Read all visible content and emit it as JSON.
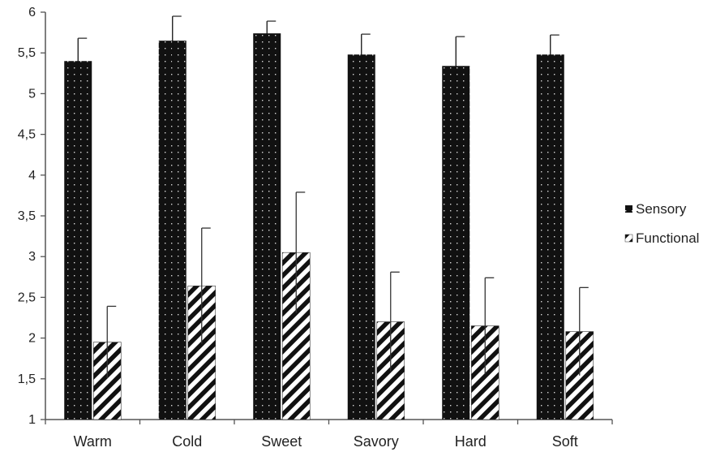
{
  "chart_data": {
    "type": "bar",
    "title": "",
    "xlabel": "",
    "ylabel": "",
    "categories": [
      "Warm",
      "Cold",
      "Sweet",
      "Savory",
      "Hard",
      "Soft"
    ],
    "series": [
      {
        "name": "Sensory",
        "values": [
          5.4,
          5.65,
          5.74,
          5.48,
          5.34,
          5.48
        ],
        "error": [
          0.28,
          0.3,
          0.15,
          0.25,
          0.36,
          0.24
        ],
        "color": "#111111",
        "pattern": "dotted"
      },
      {
        "name": "Functional",
        "values": [
          1.95,
          2.64,
          3.05,
          2.2,
          2.15,
          2.08
        ],
        "error": [
          0.44,
          0.71,
          0.74,
          0.61,
          0.59,
          0.54
        ],
        "color": "#111111",
        "pattern": "diagonal-stripes"
      }
    ],
    "ylim": [
      1,
      6
    ],
    "yticks": [
      "1",
      "1,5",
      "2",
      "2,5",
      "3",
      "3,5",
      "4",
      "4,5",
      "5",
      "5,5",
      "6"
    ],
    "grid": false,
    "legend_position": "right"
  }
}
